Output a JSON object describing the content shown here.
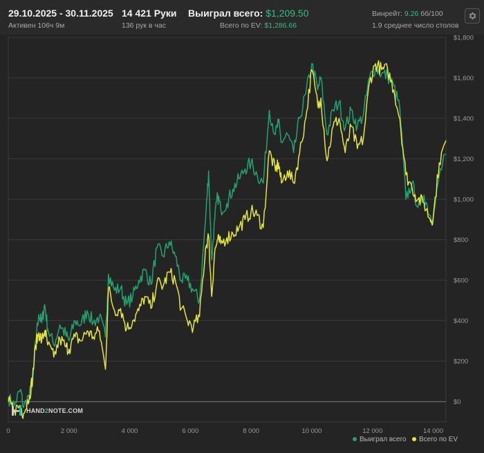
{
  "header": {
    "period": "29.10.2025 - 30.11.2025",
    "active": "Активен 106ч 9м",
    "hands": "14 421 Руки",
    "hands_rate": "136 рук в час",
    "won_label": "Выиграл всего:",
    "won_value": "$1,209.50",
    "ev_label": "Всего по EV:",
    "ev_value": "$1,286.66",
    "winrate_label": "Винрейт:",
    "winrate_value": "9.26",
    "winrate_unit": "бб/100",
    "tables": "1.9 среднее число столов"
  },
  "logo": {
    "text_a": "HAND",
    "text_b": "2",
    "text_c": "NOTE.COM"
  },
  "icons": {
    "settings": "gear-icon",
    "logo": "hand2note-logo-icon"
  },
  "colors": {
    "won": "#1fa472",
    "ev": "#e6e63a",
    "accent": "#2fbf84"
  },
  "chart_data": {
    "type": "line",
    "title": "",
    "xlabel": "",
    "ylabel": "",
    "xlim": [
      0,
      14421
    ],
    "ylim": [
      -100,
      1800
    ],
    "x_ticks": [
      0,
      2000,
      4000,
      6000,
      8000,
      10000,
      12000,
      14000
    ],
    "x_tick_labels": [
      "0",
      "2 000",
      "4 000",
      "6 000",
      "8 000",
      "10 000",
      "12 000",
      "14 000"
    ],
    "y_ticks": [
      0,
      200,
      400,
      600,
      800,
      1000,
      1200,
      1400,
      1600,
      1800
    ],
    "y_tick_labels": [
      "$0",
      "$200",
      "$400",
      "$600",
      "$800",
      "$1,000",
      "$1,200",
      "$1,400",
      "$1,600",
      "$1,800"
    ],
    "grid": true,
    "legend_position": "bottom-right",
    "series": [
      {
        "name": "Выиграл всего",
        "color": "#1fa472",
        "points": [
          [
            0,
            20
          ],
          [
            200,
            -20
          ],
          [
            400,
            60
          ],
          [
            500,
            -30
          ],
          [
            700,
            40
          ],
          [
            800,
            80
          ],
          [
            900,
            300
          ],
          [
            1000,
            430
          ],
          [
            1100,
            390
          ],
          [
            1200,
            480
          ],
          [
            1300,
            360
          ],
          [
            1500,
            280
          ],
          [
            1700,
            380
          ],
          [
            1900,
            330
          ],
          [
            2000,
            300
          ],
          [
            2200,
            400
          ],
          [
            2400,
            380
          ],
          [
            2600,
            450
          ],
          [
            2800,
            390
          ],
          [
            3000,
            420
          ],
          [
            3200,
            320
          ],
          [
            3300,
            630
          ],
          [
            3500,
            550
          ],
          [
            3700,
            560
          ],
          [
            3900,
            480
          ],
          [
            4100,
            520
          ],
          [
            4300,
            600
          ],
          [
            4500,
            650
          ],
          [
            4700,
            580
          ],
          [
            4900,
            760
          ],
          [
            5100,
            720
          ],
          [
            5300,
            790
          ],
          [
            5500,
            720
          ],
          [
            5700,
            600
          ],
          [
            5900,
            600
          ],
          [
            6100,
            550
          ],
          [
            6300,
            500
          ],
          [
            6500,
            900
          ],
          [
            6600,
            1140
          ],
          [
            6700,
            700
          ],
          [
            6800,
            900
          ],
          [
            6900,
            1020
          ],
          [
            7000,
            950
          ],
          [
            7200,
            980
          ],
          [
            7400,
            1050
          ],
          [
            7600,
            1100
          ],
          [
            7800,
            1150
          ],
          [
            8000,
            1180
          ],
          [
            8200,
            1120
          ],
          [
            8400,
            1080
          ],
          [
            8600,
            1440
          ],
          [
            8800,
            1320
          ],
          [
            8900,
            1380
          ],
          [
            9000,
            1280
          ],
          [
            9200,
            1320
          ],
          [
            9400,
            1230
          ],
          [
            9600,
            1400
          ],
          [
            9800,
            1520
          ],
          [
            10000,
            1670
          ],
          [
            10200,
            1540
          ],
          [
            10300,
            1600
          ],
          [
            10500,
            1320
          ],
          [
            10700,
            1440
          ],
          [
            10900,
            1480
          ],
          [
            11100,
            1350
          ],
          [
            11300,
            1440
          ],
          [
            11500,
            1360
          ],
          [
            11700,
            1420
          ],
          [
            11900,
            1600
          ],
          [
            12100,
            1650
          ],
          [
            12300,
            1620
          ],
          [
            12500,
            1610
          ],
          [
            12700,
            1560
          ],
          [
            12900,
            1450
          ],
          [
            13100,
            1000
          ],
          [
            13300,
            1080
          ],
          [
            13500,
            960
          ],
          [
            13700,
            1020
          ],
          [
            13900,
            920
          ],
          [
            14000,
            900
          ],
          [
            14200,
            1120
          ],
          [
            14421,
            1220
          ]
        ]
      },
      {
        "name": "Всего по EV",
        "color": "#e6e63a",
        "points": [
          [
            0,
            0
          ],
          [
            200,
            -40
          ],
          [
            400,
            -20
          ],
          [
            500,
            -60
          ],
          [
            700,
            30
          ],
          [
            800,
            120
          ],
          [
            900,
            280
          ],
          [
            1000,
            340
          ],
          [
            1100,
            300
          ],
          [
            1200,
            350
          ],
          [
            1300,
            280
          ],
          [
            1500,
            220
          ],
          [
            1700,
            310
          ],
          [
            1900,
            270
          ],
          [
            2000,
            260
          ],
          [
            2200,
            320
          ],
          [
            2400,
            300
          ],
          [
            2600,
            350
          ],
          [
            2800,
            320
          ],
          [
            3000,
            350
          ],
          [
            3200,
            160
          ],
          [
            3300,
            560
          ],
          [
            3500,
            450
          ],
          [
            3700,
            460
          ],
          [
            3900,
            360
          ],
          [
            4100,
            400
          ],
          [
            4300,
            450
          ],
          [
            4500,
            520
          ],
          [
            4700,
            460
          ],
          [
            4900,
            590
          ],
          [
            5100,
            570
          ],
          [
            5300,
            640
          ],
          [
            5500,
            600
          ],
          [
            5700,
            460
          ],
          [
            5900,
            400
          ],
          [
            6100,
            370
          ],
          [
            6300,
            420
          ],
          [
            6500,
            760
          ],
          [
            6600,
            820
          ],
          [
            6700,
            520
          ],
          [
            6800,
            740
          ],
          [
            6900,
            800
          ],
          [
            7000,
            780
          ],
          [
            7200,
            810
          ],
          [
            7400,
            830
          ],
          [
            7600,
            860
          ],
          [
            7800,
            900
          ],
          [
            8000,
            940
          ],
          [
            8200,
            920
          ],
          [
            8400,
            860
          ],
          [
            8600,
            1240
          ],
          [
            8800,
            1140
          ],
          [
            8900,
            1180
          ],
          [
            9000,
            1080
          ],
          [
            9200,
            1140
          ],
          [
            9400,
            1080
          ],
          [
            9600,
            1230
          ],
          [
            9800,
            1400
          ],
          [
            10000,
            1640
          ],
          [
            10200,
            1460
          ],
          [
            10300,
            1500
          ],
          [
            10500,
            1190
          ],
          [
            10700,
            1360
          ],
          [
            10900,
            1400
          ],
          [
            11100,
            1230
          ],
          [
            11300,
            1360
          ],
          [
            11500,
            1250
          ],
          [
            11700,
            1300
          ],
          [
            11900,
            1580
          ],
          [
            12100,
            1670
          ],
          [
            12300,
            1640
          ],
          [
            12500,
            1640
          ],
          [
            12700,
            1540
          ],
          [
            12900,
            1400
          ],
          [
            13100,
            1120
          ],
          [
            13300,
            1060
          ],
          [
            13500,
            1000
          ],
          [
            13700,
            980
          ],
          [
            13900,
            900
          ],
          [
            14000,
            910
          ],
          [
            14200,
            1180
          ],
          [
            14421,
            1290
          ]
        ]
      }
    ]
  },
  "legend": {
    "won": "Выиграл всего",
    "ev": "Всего по EV"
  }
}
